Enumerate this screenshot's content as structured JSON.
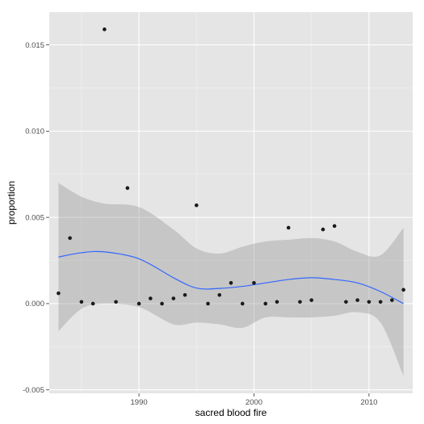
{
  "chart_data": {
    "type": "scatter",
    "title": "",
    "xlabel": "sacred blood fire",
    "ylabel": "proportion",
    "xlim": [
      1982.2,
      2013.8
    ],
    "ylim": [
      -0.0052,
      0.0169
    ],
    "x_ticks": [
      1990,
      2000,
      2010
    ],
    "y_ticks": [
      -0.005,
      0.0,
      0.005,
      0.01,
      0.015
    ],
    "x_tick_labels": [
      "1990",
      "2000",
      "2010"
    ],
    "y_tick_labels": [
      "-0.005",
      "0.000",
      "0.005",
      "0.010",
      "0.015"
    ],
    "grid": true,
    "legend": "none",
    "colors": {
      "panel_background": "#e5e5e5",
      "grid_major": "#ffffff",
      "grid_minor": "#f2f2f2",
      "points": "#1a1a1a",
      "smooth_line": "#3366ff",
      "ribbon": "#999999"
    },
    "points": [
      {
        "x": 1983,
        "y": 0.0006
      },
      {
        "x": 1984,
        "y": 0.0038
      },
      {
        "x": 1985,
        "y": 0.0001
      },
      {
        "x": 1986,
        "y": 0.0
      },
      {
        "x": 1987,
        "y": 0.0159
      },
      {
        "x": 1988,
        "y": 0.0001
      },
      {
        "x": 1989,
        "y": 0.0067
      },
      {
        "x": 1990,
        "y": 0.0
      },
      {
        "x": 1991,
        "y": 0.0003
      },
      {
        "x": 1992,
        "y": 0.0
      },
      {
        "x": 1993,
        "y": 0.0003
      },
      {
        "x": 1994,
        "y": 0.0005
      },
      {
        "x": 1995,
        "y": 0.0057
      },
      {
        "x": 1996,
        "y": 0.0
      },
      {
        "x": 1997,
        "y": 0.0005
      },
      {
        "x": 1998,
        "y": 0.0012
      },
      {
        "x": 1999,
        "y": 0.0
      },
      {
        "x": 2000,
        "y": 0.0012
      },
      {
        "x": 2001,
        "y": 0.0
      },
      {
        "x": 2002,
        "y": 0.0001
      },
      {
        "x": 2003,
        "y": 0.0044
      },
      {
        "x": 2004,
        "y": 0.0001
      },
      {
        "x": 2005,
        "y": 0.0002
      },
      {
        "x": 2006,
        "y": 0.0043
      },
      {
        "x": 2007,
        "y": 0.0045
      },
      {
        "x": 2008,
        "y": 0.0001
      },
      {
        "x": 2009,
        "y": 0.0002
      },
      {
        "x": 2010,
        "y": 0.0001
      },
      {
        "x": 2011,
        "y": 0.0001
      },
      {
        "x": 2012,
        "y": 0.0002
      },
      {
        "x": 2013,
        "y": 0.0008
      }
    ],
    "smooth": [
      {
        "x": 1983,
        "y": 0.0027,
        "lower": -0.0016,
        "upper": 0.007
      },
      {
        "x": 1985,
        "y": 0.00295,
        "lower": -0.0003,
        "upper": 0.0062
      },
      {
        "x": 1987,
        "y": 0.003,
        "lower": 0.0,
        "upper": 0.0058
      },
      {
        "x": 1990,
        "y": 0.0026,
        "lower": -0.0002,
        "upper": 0.0056
      },
      {
        "x": 1993,
        "y": 0.0015,
        "lower": -0.0012,
        "upper": 0.0043
      },
      {
        "x": 1995,
        "y": 0.0009,
        "lower": -0.0011,
        "upper": 0.0032
      },
      {
        "x": 1997,
        "y": 0.00088,
        "lower": -0.0012,
        "upper": 0.0029
      },
      {
        "x": 1999,
        "y": 0.001,
        "lower": -0.0014,
        "upper": 0.0033
      },
      {
        "x": 2001,
        "y": 0.0012,
        "lower": -0.0008,
        "upper": 0.0036
      },
      {
        "x": 2003,
        "y": 0.0014,
        "lower": -0.0008,
        "upper": 0.0037
      },
      {
        "x": 2005,
        "y": 0.0015,
        "lower": -0.0008,
        "upper": 0.0038
      },
      {
        "x": 2007,
        "y": 0.0014,
        "lower": -0.0007,
        "upper": 0.0036
      },
      {
        "x": 2009,
        "y": 0.0012,
        "lower": -0.0005,
        "upper": 0.003
      },
      {
        "x": 2011,
        "y": 0.0007,
        "lower": -0.0011,
        "upper": 0.0028
      },
      {
        "x": 2013,
        "y": 0.0,
        "lower": -0.0042,
        "upper": 0.0044
      }
    ]
  }
}
